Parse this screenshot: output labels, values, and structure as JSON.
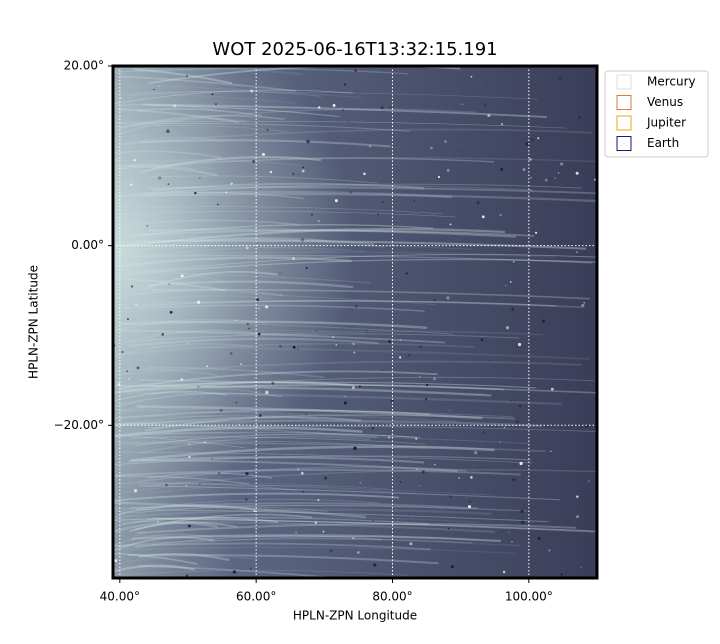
{
  "chart_data": {
    "type": "image",
    "title": "WOT 2025-06-16T13:32:15.191",
    "x_label": "HPLN-ZPN Longitude",
    "y_label": "HPLN-ZPN Latitude",
    "xlim": [
      39,
      110
    ],
    "ylim": [
      -37,
      20
    ],
    "xticks": [
      {
        "value": 40,
        "label": "40.00°"
      },
      {
        "value": 60,
        "label": "60.00°"
      },
      {
        "value": 80,
        "label": "80.00°"
      },
      {
        "value": 100,
        "label": "100.00°"
      }
    ],
    "yticks": [
      {
        "value": 20,
        "label": "20.00°"
      },
      {
        "value": 0,
        "label": "0.00°"
      },
      {
        "value": -20,
        "label": "−20.00°"
      }
    ],
    "grid": true,
    "legend": "upper right",
    "series": [
      {
        "name": "Mercury",
        "color": "#dddddd"
      },
      {
        "name": "Venus",
        "color": "#e07b39"
      },
      {
        "name": "Jupiter",
        "color": "#e0a820"
      },
      {
        "name": "Earth",
        "color": "#1a1a7a"
      }
    ]
  }
}
